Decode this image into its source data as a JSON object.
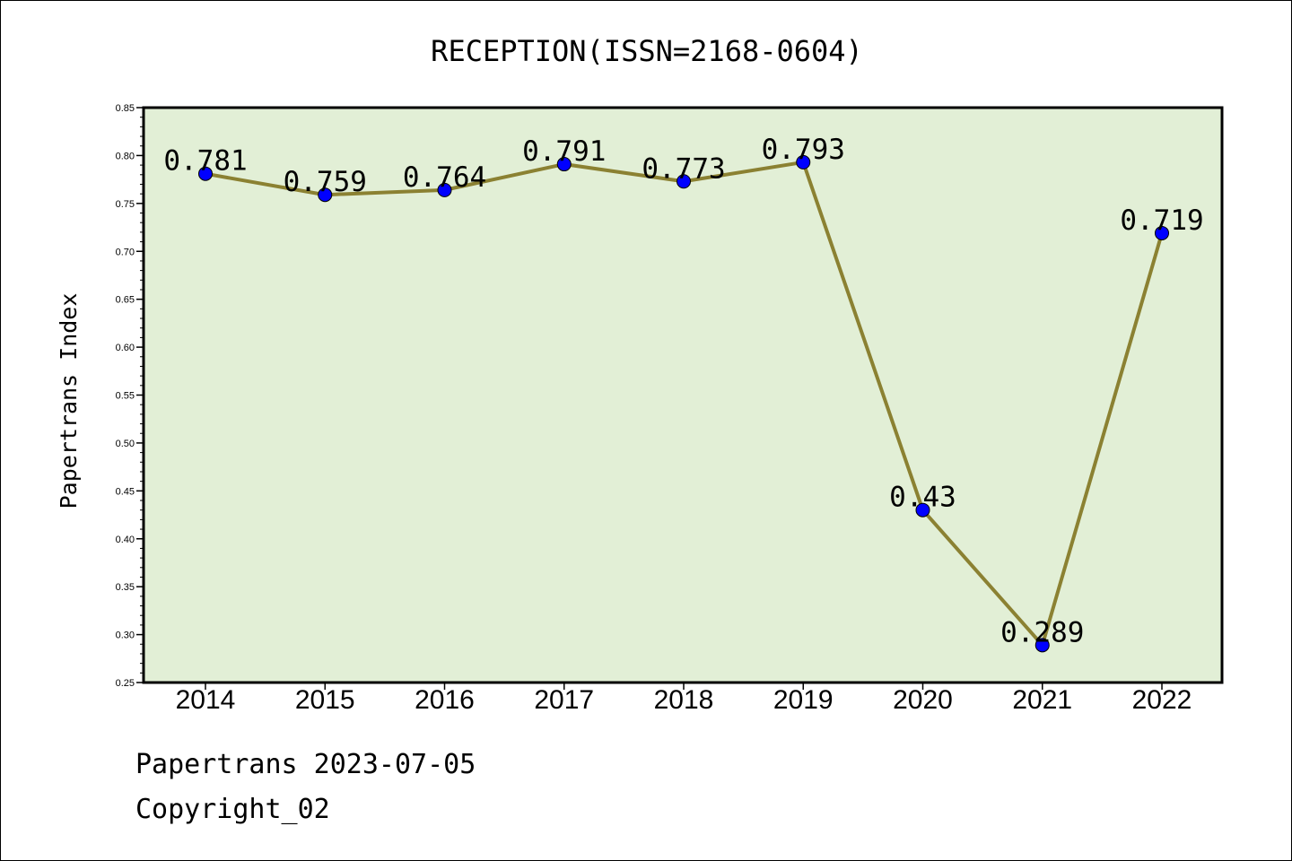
{
  "chart_data": {
    "type": "line",
    "title": "RECEPTION(ISSN=2168-0604)",
    "ylabel": "Papertrans Index",
    "xlabel": "",
    "categories": [
      "2014",
      "2015",
      "2016",
      "2017",
      "2018",
      "2019",
      "2020",
      "2021",
      "2022"
    ],
    "values": [
      0.781,
      0.759,
      0.764,
      0.791,
      0.773,
      0.793,
      0.43,
      0.289,
      0.719
    ],
    "value_labels": [
      "0.781",
      "0.759",
      "0.764",
      "0.791",
      "0.773",
      "0.793",
      "0.43",
      "0.289",
      "0.719"
    ],
    "ylim": [
      0.25,
      0.85
    ],
    "yticks": [
      "0.25",
      "0.30",
      "0.35",
      "0.40",
      "0.45",
      "0.50",
      "0.55",
      "0.60",
      "0.65",
      "0.70",
      "0.75",
      "0.80",
      "0.85"
    ],
    "grid": false,
    "colors": {
      "plot_background": "#e2efd6",
      "line": "#8b8132",
      "marker": "#0000ff"
    }
  },
  "footer": {
    "line1": "Papertrans 2023-07-05",
    "line2": "Copyright_02"
  }
}
